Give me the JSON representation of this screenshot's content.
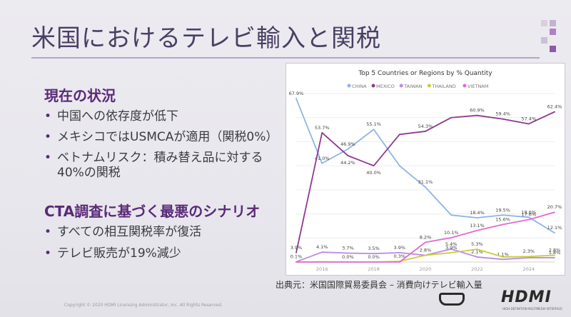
{
  "title": "米国におけるテレビ輸入と関税",
  "section1": {
    "heading": "現在の状況",
    "bullets": [
      "中国への依存度が低下",
      "メキシコではUSMCAが適用（関税0%）",
      "ベトナムリスク：積み替え品に対する",
      "40%の関税"
    ]
  },
  "section2": {
    "heading": "CTA調査に基づく最悪のシナリオ",
    "bullets": [
      "すべての相互関税率が復活",
      "テレビ販売が19%減少"
    ]
  },
  "bullet_glyph": "•",
  "source": "出典元：米国国際貿易委員会 – 消費向けテレビ輸入量",
  "copyright": "Copyright © 2020 HDMI Licensing Administrator, Inc. All Rights Reserved.",
  "logo": {
    "text": "HDMI",
    "sub": "HIGH-DEFINITION MULTIMEDIA INTERFACE"
  },
  "colors": {
    "title": "#4a3f63",
    "accent": "#5a2a78",
    "rule": "#b7a6c8"
  },
  "chart_data": {
    "type": "line",
    "title": "Top 5 Countries or Regions by % Quantity",
    "x": [
      2015,
      2016,
      2017,
      2018,
      2019,
      2020,
      2021,
      2022,
      2023,
      2024,
      2025
    ],
    "xticks": [
      "2016",
      "2018",
      "2020",
      "2022",
      "2024"
    ],
    "legend_position": "top",
    "series": [
      {
        "name": "CHINA",
        "color": "#8fb3e6",
        "values": [
          67.9,
          41.0,
          46.9,
          55.1,
          40.0,
          31.1,
          19.5,
          18.4,
          19.5,
          18.6,
          12.1
        ],
        "labels": [
          "67.9%",
          "41.0%",
          "46.9%",
          "55.1%",
          "",
          "31.1%",
          "",
          "18.4%",
          "19.5%",
          "18.6%",
          "12.1%"
        ]
      },
      {
        "name": "MEXICO",
        "color": "#8e3a8e",
        "values": [
          3.9,
          53.7,
          44.2,
          40.0,
          53.0,
          54.3,
          60.0,
          60.9,
          59.4,
          57.4,
          62.4
        ],
        "labels": [
          "3.9%",
          "53.7%",
          "44.2%",
          "40.0%",
          "",
          "54.3%",
          "",
          "60.9%",
          "59.4%",
          "57.4%",
          "62.4%"
        ]
      },
      {
        "name": "TAIWAN",
        "color": "#b98ce0",
        "values": [
          0.1,
          4.1,
          3.7,
          3.5,
          3.9,
          2.8,
          5.4,
          2.1,
          1.1,
          1.8,
          1.8
        ],
        "labels": [
          "0.1%",
          "4.1%",
          "3.7%",
          "3.5%",
          "3.9%",
          "2.8%",
          "5.4%",
          "2.1%",
          "1.1%",
          "",
          "1.8%"
        ]
      },
      {
        "name": "THAILAND",
        "color": "#c9cc3a",
        "values": [
          0.0,
          0.1,
          0.0,
          0.0,
          0.3,
          2.8,
          3.9,
          5.3,
          2.1,
          2.3,
          2.8
        ],
        "labels": [
          "",
          "",
          "0.0%",
          "0.0%",
          "0.3%",
          "",
          "3.9%",
          "5.3%",
          "",
          "2.3%",
          "2.8%"
        ]
      },
      {
        "name": "VIETNAM",
        "color": "#e36ad1",
        "values": [
          0.0,
          0.0,
          0.0,
          0.0,
          0.0,
          8.2,
          10.1,
          13.1,
          15.6,
          17.6,
          20.7
        ],
        "labels": [
          "",
          "",
          "",
          "",
          "",
          "8.2%",
          "10.1%",
          "13.1%",
          "15.6%",
          "17.6%",
          "20.7%"
        ]
      }
    ],
    "ylim": [
      0,
      70
    ],
    "grid": true
  }
}
